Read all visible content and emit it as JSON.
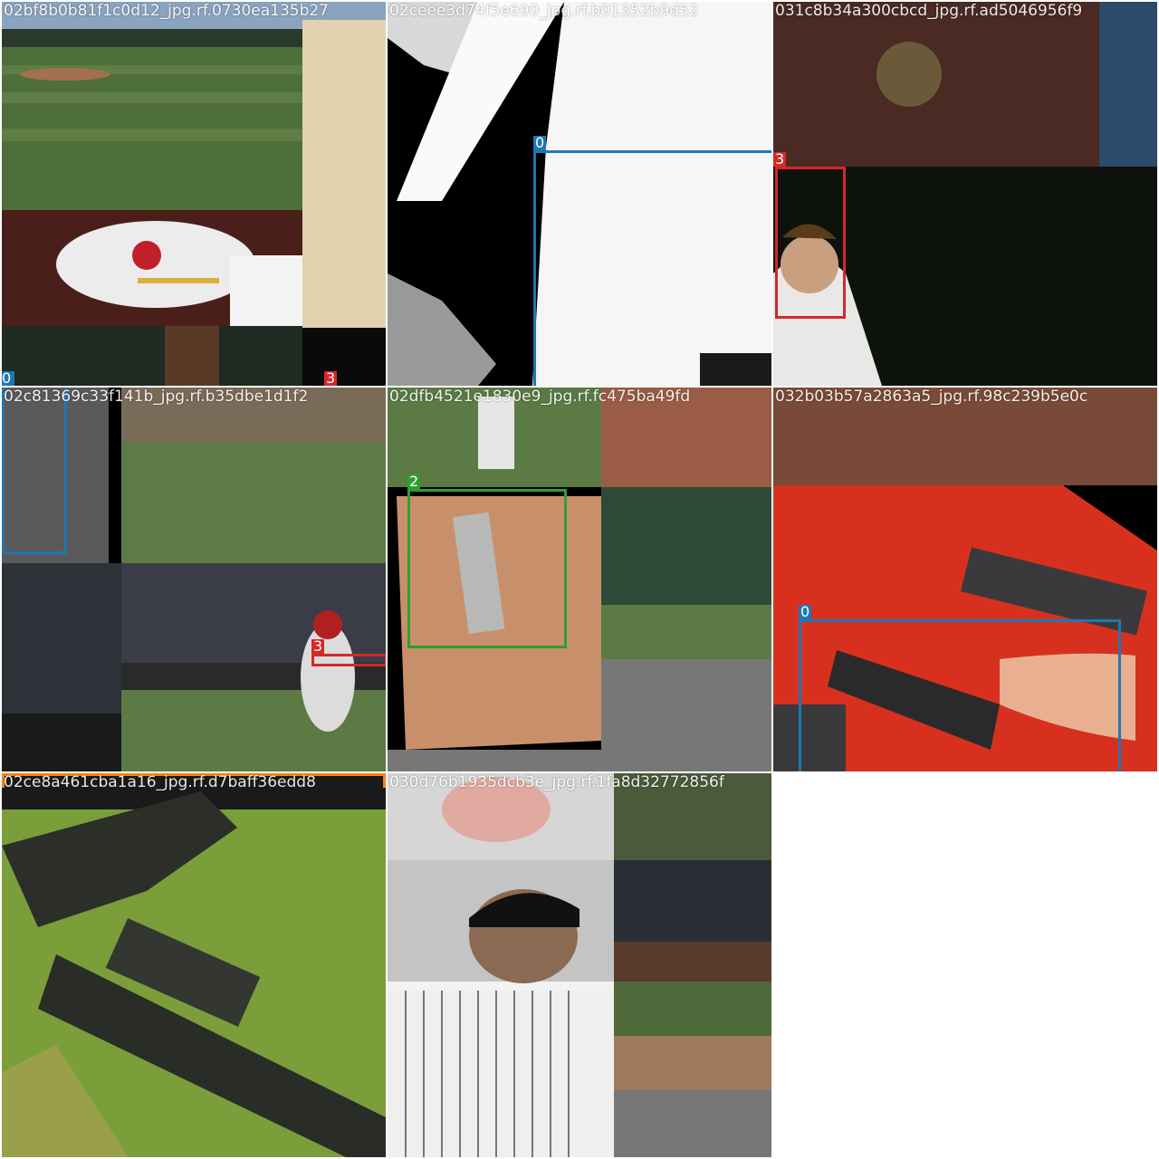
{
  "tiles": [
    {
      "filename": "02bf8b0b81f1c0d12_jpg.rf.0730ea135b27",
      "boxes": [
        {
          "cls": "0",
          "color": "#1f77b4",
          "edge": "left"
        },
        {
          "cls": "3",
          "color": "#d62728",
          "edge": "right"
        }
      ]
    },
    {
      "filename": "02ceee3d74f5e690_jpg.rf.b01352b9d52",
      "boxes": [
        {
          "cls": "0",
          "color": "#1f77b4"
        }
      ]
    },
    {
      "filename": "031c8b34a300cbcd_jpg.rf.ad5046956f9",
      "boxes": [
        {
          "cls": "3",
          "color": "#d62728"
        }
      ]
    },
    {
      "filename": "02c81369c33f141b_jpg.rf.b35dbe1d1f2",
      "boxes": [
        {
          "cls": "3",
          "color": "#d62728"
        }
      ]
    },
    {
      "filename": "02dfb4521e1830e9_jpg.rf.fc475ba49fd",
      "boxes": [
        {
          "cls": "2",
          "color": "#2ca02c"
        }
      ]
    },
    {
      "filename": "032b03b57a2863a5_jpg.rf.98c239b5e0c",
      "boxes": [
        {
          "cls": "0",
          "color": "#1f77b4"
        }
      ]
    },
    {
      "filename": "02ce8a461cba1a16_jpg.rf.d7baff36edd8",
      "boxes": [
        {
          "cls": "",
          "color": "#ff7f0e"
        }
      ]
    },
    {
      "filename": "030d76b1935dcb3e_jpg.rf.1fa8d32772856f",
      "boxes": []
    }
  ]
}
